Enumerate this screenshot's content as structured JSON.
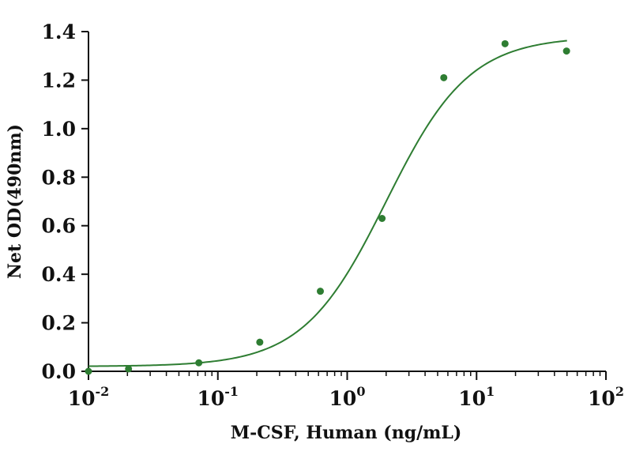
{
  "chart_data": {
    "type": "scatter",
    "xlabel": "M-CSF, Human (ng/mL)",
    "ylabel": "Net OD(490nm)",
    "x_scale": "log",
    "xlim": [
      0.01,
      100
    ],
    "ylim": [
      0,
      1.4
    ],
    "grid": false,
    "y_ticks": [
      "0.0",
      "0.2",
      "0.4",
      "0.6",
      "0.8",
      "1.0",
      "1.2",
      "1.4"
    ],
    "x_ticks": [
      {
        "base": "10",
        "exp": "-2"
      },
      {
        "base": "10",
        "exp": "-1"
      },
      {
        "base": "10",
        "exp": "0"
      },
      {
        "base": "10",
        "exp": "1"
      },
      {
        "base": "10",
        "exp": "2"
      }
    ],
    "series_color": "#2e7d32",
    "points": [
      {
        "x": 0.01,
        "y": 0.0
      },
      {
        "x": 0.0204,
        "y": 0.01
      },
      {
        "x": 0.0713,
        "y": 0.035
      },
      {
        "x": 0.211,
        "y": 0.12
      },
      {
        "x": 0.62,
        "y": 0.33
      },
      {
        "x": 1.86,
        "y": 0.63
      },
      {
        "x": 5.58,
        "y": 1.21
      },
      {
        "x": 16.6,
        "y": 1.35
      },
      {
        "x": 49.6,
        "y": 1.32
      }
    ],
    "fit": {
      "bottom": 0.02,
      "top": 1.38,
      "ec50": 2.0,
      "hill": 1.35
    }
  }
}
